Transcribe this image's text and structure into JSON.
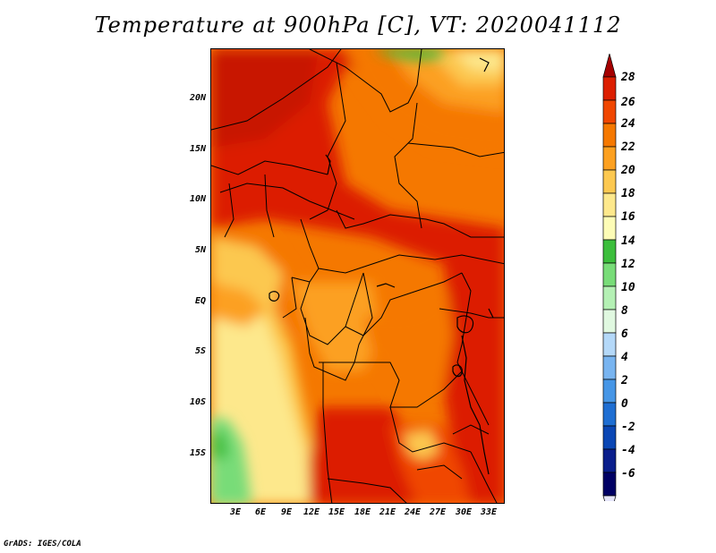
{
  "title": "Temperature at 900hPa [C], VT: 2020041112",
  "credit": "GrADS: IGES/COLA",
  "map": {
    "y_axis_labels": [
      "20N",
      "15N",
      "10N",
      "5N",
      "EQ",
      "5S",
      "10S",
      "15S"
    ],
    "x_axis_labels": [
      "3E",
      "6E",
      "9E",
      "12E",
      "15E",
      "18E",
      "21E",
      "24E",
      "27E",
      "30E",
      "33E"
    ]
  },
  "colorbar": {
    "labels": [
      "28",
      "26",
      "24",
      "22",
      "20",
      "18",
      "16",
      "14",
      "12",
      "10",
      "8",
      "6",
      "4",
      "2",
      "0",
      "-2",
      "-4",
      "-6"
    ],
    "colors": [
      "#a50000",
      "#dc1e00",
      "#f04600",
      "#f57800",
      "#fca020",
      "#fcc850",
      "#fde88c",
      "#fdfcb6",
      "#3cbe3c",
      "#78dc78",
      "#b4f0b4",
      "#e0f8e0",
      "#b4d8f8",
      "#78b4f0",
      "#4696e6",
      "#1e6ed2",
      "#0a46b4",
      "#0a1e8c",
      "#000064",
      "#e6e6fa"
    ]
  }
}
